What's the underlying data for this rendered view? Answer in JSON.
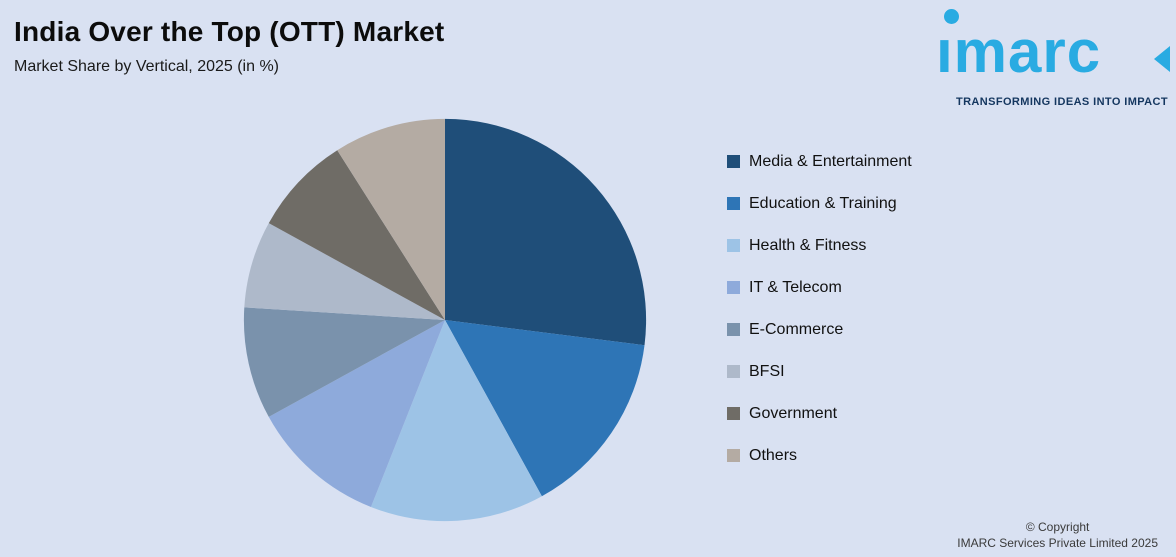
{
  "header": {
    "title": "India Over the Top (OTT) Market",
    "subtitle": "Market Share by Vertical, 2025 (in %)"
  },
  "logo": {
    "text": "ımarc",
    "tagline": "TRANSFORMING IDEAS INTO IMPACT",
    "brand_color": "#29abe2",
    "tagline_color": "#14365f"
  },
  "footer": {
    "copyright_line1": "© Copyright",
    "copyright_line2": "IMARC Services Private Limited 2025"
  },
  "colors": {
    "background": "#d9e1f2"
  },
  "chart_data": {
    "type": "pie",
    "title": "India Over the Top (OTT) Market",
    "subtitle": "Market Share by Vertical, 2025 (in %)",
    "unit": "%",
    "legend_position": "right",
    "start_angle_deg": 0,
    "direction": "clockwise",
    "categories": [
      "Media & Entertainment",
      "Education & Training",
      "Health & Fitness",
      "IT & Telecom",
      "E-Commerce",
      "BFSI",
      "Government",
      "Others"
    ],
    "values": [
      27,
      15,
      14,
      11,
      9,
      7,
      8,
      9
    ],
    "colors": [
      "#1f4e79",
      "#2e75b6",
      "#9dc3e6",
      "#8eaadb",
      "#7a92ac",
      "#aeb9ca",
      "#6f6c66",
      "#b4aba3"
    ]
  }
}
